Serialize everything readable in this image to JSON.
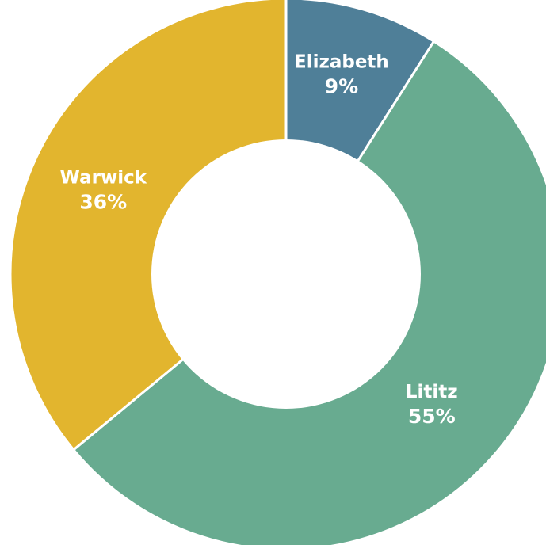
{
  "chart_data": {
    "type": "pie",
    "donut": true,
    "title": "",
    "slices": [
      {
        "label": "Elizabeth",
        "value": 9,
        "value_label": "9%",
        "color": "#4f7f98"
      },
      {
        "label": "Lititz",
        "value": 55,
        "value_label": "55%",
        "color": "#68ab90"
      },
      {
        "label": "Warwick",
        "value": 36,
        "value_label": "36%",
        "color": "#e2b52e"
      }
    ],
    "start_angle_deg": 0,
    "direction": "clockwise",
    "legend": "none",
    "slice_border_color": "#ffffff",
    "label_color": "#ffffff"
  }
}
